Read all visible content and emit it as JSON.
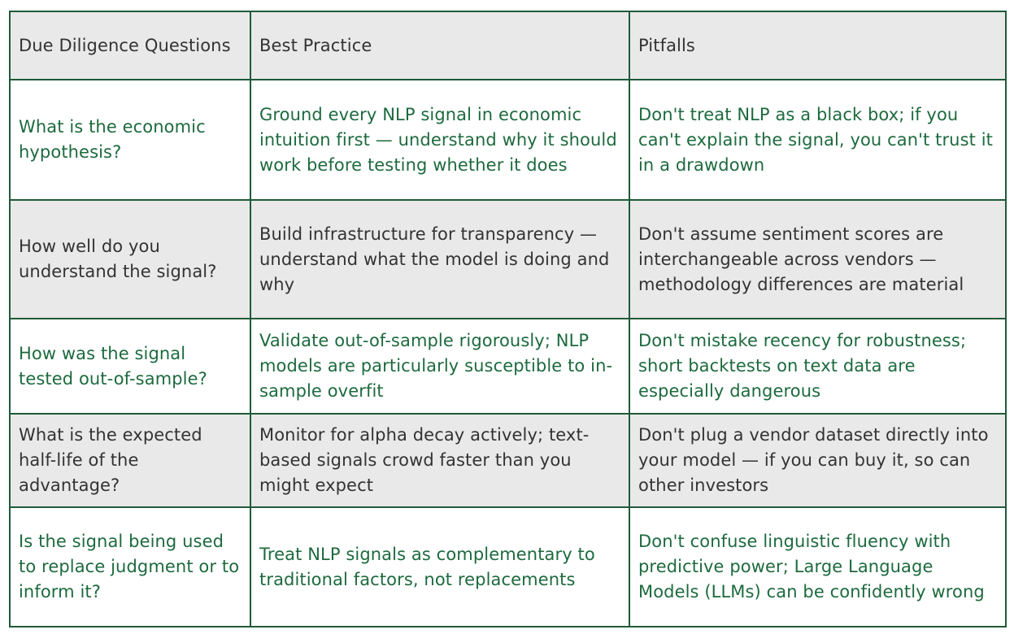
{
  "table": {
    "header": [
      "Due Diligence Questions",
      "Best Practice",
      "Pitfalls"
    ],
    "rows": [
      [
        "What is the economic hypothesis?",
        "Ground every NLP signal in economic intuition first — understand why it should work before testing whether it does",
        "Don't treat NLP as a black box; if you can't explain the signal, you can't trust it in a drawdown"
      ],
      [
        "How well do you understand the signal?",
        "Build infrastructure for transparency —understand what the model is doing and why",
        "Don't assume sentiment scores are interchangeable across vendors — methodology differences are material"
      ],
      [
        "How was the signal tested out-of-sample?",
        "Validate out-of-sample rigorously; NLP models are particularly susceptible to in-sample overfit",
        "Don't mistake recency for robustness; short backtests on text data are especially dangerous"
      ],
      [
        "What is the expected half-life of the advantage?",
        "Monitor for alpha decay actively; text-based signals crowd faster than you might expect",
        "Don't plug a vendor dataset directly into your model — if you can buy it, so can other investors"
      ],
      [
        "Is the signal being used to replace judgment or to inform it?",
        "Treat NLP signals as complementary to traditional factors, not replacements",
        "Don't confuse linguistic fluency with predictive power; Large Language Models (LLMs) can be confidently wrong"
      ]
    ]
  }
}
